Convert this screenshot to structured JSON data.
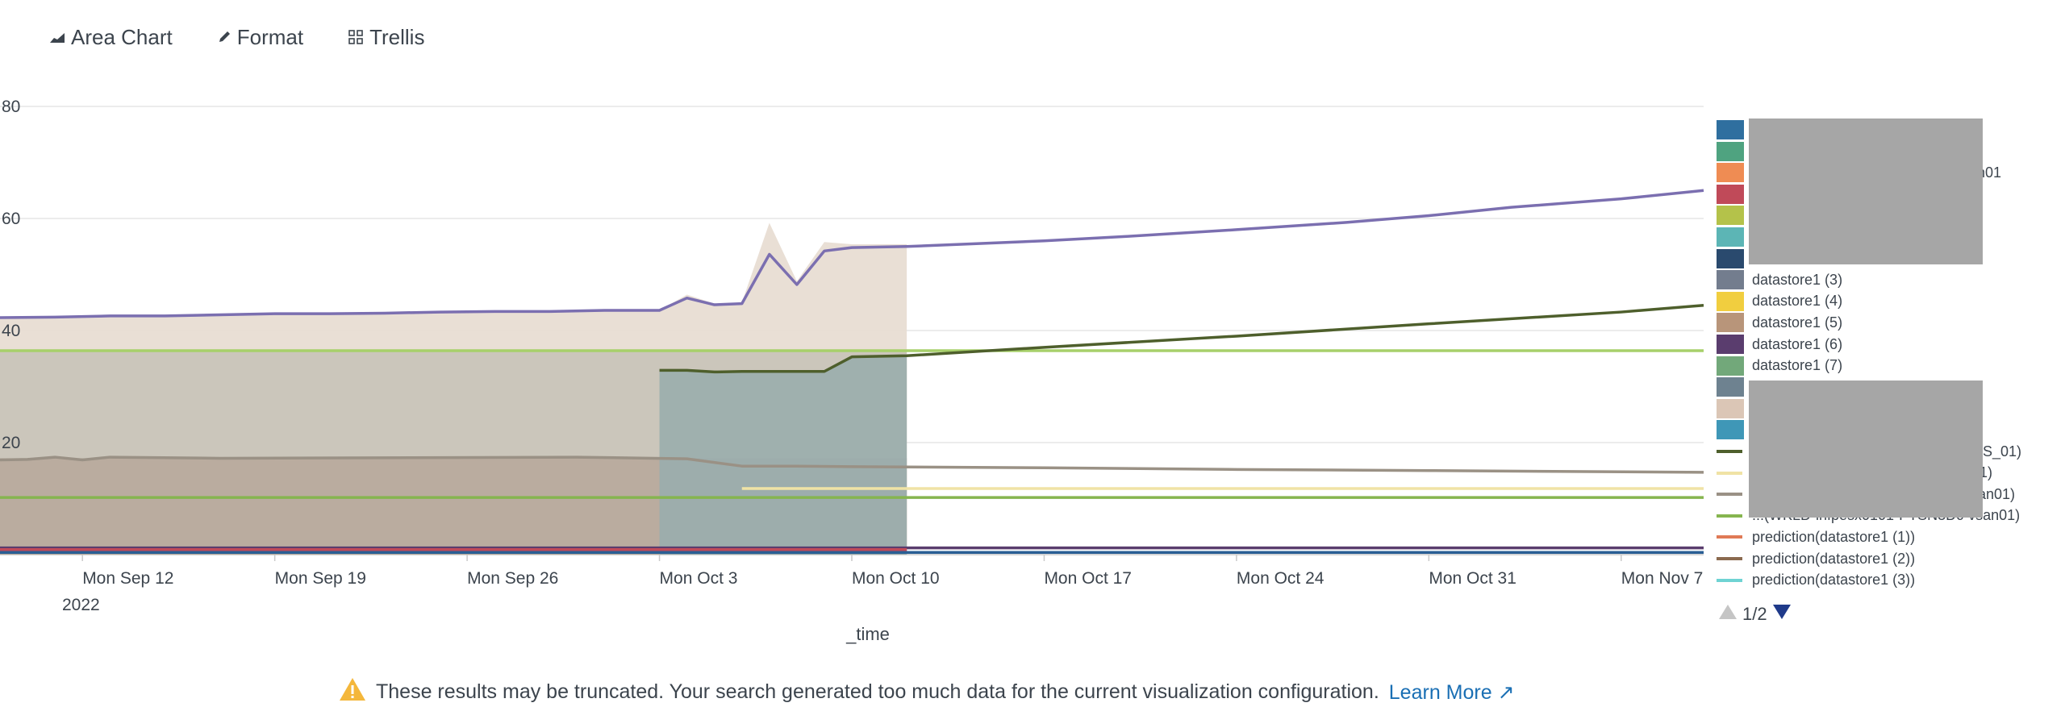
{
  "toolbar": {
    "chart_type_label": "Area Chart",
    "format_label": "Format",
    "trellis_label": "Trellis"
  },
  "chart_data": {
    "type": "area",
    "xlabel": "_time",
    "x_ticks": [
      "Mon Sep 12",
      "Mon Sep 19",
      "Mon Sep 26",
      "Mon Oct 3",
      "Mon Oct 10",
      "Mon Oct 17",
      "Mon Oct 24",
      "Mon Oct 31",
      "Mon Nov 7"
    ],
    "x_year_label": "2022",
    "y_ticks": [
      20,
      40,
      60,
      80
    ],
    "ylim": [
      0,
      80
    ],
    "xlim": [
      "2022-09-09",
      "2022-11-10"
    ],
    "grid": "horizontal",
    "legend_position": "right",
    "colors": {
      "purple_forecast": "#7b6fb0",
      "tan_area": "#e8ddd3",
      "taupe_area": "#b8a99c",
      "grey_area": "#c8c3b8",
      "teal_area": "#9aadad",
      "dark_green": "#4e5f2c",
      "light_green": "#a7d06a",
      "olive_green": "#86b54f",
      "grey_line": "#9a9185",
      "pale_yellow": "#f0e3a5"
    },
    "series": [
      {
        "color": "#7b6fb0",
        "kind": "line",
        "points": [
          [
            "2022-09-09",
            42.3
          ],
          [
            "2022-09-11",
            42.4
          ],
          [
            "2022-09-13",
            42.6
          ],
          [
            "2022-09-15",
            42.6
          ],
          [
            "2022-09-17",
            42.8
          ],
          [
            "2022-09-19",
            43
          ],
          [
            "2022-09-21",
            43
          ],
          [
            "2022-09-23",
            43.1
          ],
          [
            "2022-09-25",
            43.3
          ],
          [
            "2022-09-27",
            43.4
          ],
          [
            "2022-09-29",
            43.4
          ],
          [
            "2022-10-01",
            43.6
          ],
          [
            "2022-10-03",
            43.6
          ],
          [
            "2022-10-04",
            45.8
          ],
          [
            "2022-10-05",
            44.6
          ],
          [
            "2022-10-06",
            44.8
          ],
          [
            "2022-10-07",
            53.6
          ],
          [
            "2022-10-08",
            48.2
          ],
          [
            "2022-10-09",
            54.2
          ],
          [
            "2022-10-10",
            54.8
          ],
          [
            "2022-10-12",
            55
          ],
          [
            "2022-10-14",
            55.4
          ],
          [
            "2022-10-17",
            56
          ],
          [
            "2022-10-20",
            56.8
          ],
          [
            "2022-10-24",
            58
          ],
          [
            "2022-10-28",
            59.3
          ],
          [
            "2022-10-31",
            60.5
          ],
          [
            "2022-11-03",
            62
          ],
          [
            "2022-11-07",
            63.5
          ],
          [
            "2022-11-10",
            65
          ]
        ]
      },
      {
        "color": "#e8ddd3",
        "kind": "area",
        "points": [
          [
            "2022-09-09",
            42.3
          ],
          [
            "2022-10-03",
            43.6
          ],
          [
            "2022-10-04",
            46.4
          ],
          [
            "2022-10-05",
            44.8
          ],
          [
            "2022-10-06",
            45
          ],
          [
            "2022-10-07",
            59.2
          ],
          [
            "2022-10-08",
            48.8
          ],
          [
            "2022-10-09",
            55.8
          ],
          [
            "2022-10-10",
            55.4
          ],
          [
            "2022-10-12",
            55.4
          ]
        ]
      },
      {
        "color": "#a7d06a",
        "kind": "line",
        "points": [
          [
            "2022-09-09",
            36.4
          ],
          [
            "2022-11-10",
            36.4
          ]
        ]
      },
      {
        "color": "#4e5f2c",
        "kind": "line",
        "points": [
          [
            "2022-10-03",
            32.9
          ],
          [
            "2022-10-04",
            32.9
          ],
          [
            "2022-10-05",
            32.6
          ],
          [
            "2022-10-06",
            32.7
          ],
          [
            "2022-10-09",
            32.7
          ],
          [
            "2022-10-10",
            35.3
          ],
          [
            "2022-10-12",
            35.5
          ],
          [
            "2022-10-17",
            37
          ],
          [
            "2022-10-24",
            39
          ],
          [
            "2022-10-31",
            41.2
          ],
          [
            "2022-11-07",
            43.3
          ],
          [
            "2022-11-10",
            44.5
          ]
        ]
      },
      {
        "color": "#9a9185",
        "kind": "line",
        "points": [
          [
            "2022-09-09",
            16.9
          ],
          [
            "2022-09-10",
            17
          ],
          [
            "2022-09-11",
            17.4
          ],
          [
            "2022-09-12",
            16.9
          ],
          [
            "2022-09-13",
            17.4
          ],
          [
            "2022-09-17",
            17.2
          ],
          [
            "2022-09-24",
            17.3
          ],
          [
            "2022-09-30",
            17.4
          ],
          [
            "2022-10-04",
            17.1
          ],
          [
            "2022-10-06",
            15.8
          ],
          [
            "2022-10-08",
            15.8
          ],
          [
            "2022-10-10",
            15.7
          ],
          [
            "2022-10-17",
            15.5
          ],
          [
            "2022-10-24",
            15.2
          ],
          [
            "2022-10-31",
            15
          ],
          [
            "2022-11-10",
            14.7
          ]
        ]
      },
      {
        "color": "#f0e3a5",
        "kind": "line",
        "points": [
          [
            "2022-10-06",
            11.8
          ],
          [
            "2022-11-10",
            11.8
          ]
        ]
      },
      {
        "color": "#86b54f",
        "kind": "line",
        "points": [
          [
            "2022-09-09",
            10.2
          ],
          [
            "2022-11-10",
            10.2
          ]
        ]
      },
      {
        "color": "#5a3d6e",
        "kind": "line",
        "points": [
          [
            "2022-09-09",
            1.2
          ],
          [
            "2022-11-10",
            1.2
          ]
        ]
      },
      {
        "color": "#c04a59",
        "kind": "line",
        "points": [
          [
            "2022-09-09",
            0.9
          ],
          [
            "2022-10-12",
            0.9
          ]
        ]
      },
      {
        "color": "#2a5f94",
        "kind": "line",
        "points": [
          [
            "2022-09-09",
            0.4
          ],
          [
            "2022-11-10",
            0.4
          ]
        ]
      }
    ]
  },
  "legend": {
    "items": [
      {
        "label": "",
        "color": "#2f6f9f",
        "kind": "swatch"
      },
      {
        "label": "",
        "color": "#4fa380",
        "kind": "swatch"
      },
      {
        "label": "-vsan01",
        "color": "#ef8c53",
        "kind": "swatch"
      },
      {
        "label": "an01",
        "color": "#c04a59",
        "kind": "swatch"
      },
      {
        "label": "",
        "color": "#b4c24a",
        "kind": "swatch"
      },
      {
        "label": "",
        "color": "#5cb5b5",
        "kind": "swatch"
      },
      {
        "label": "",
        "color": "#2a4a6e",
        "kind": "swatch"
      },
      {
        "label": "datastore1 (3)",
        "color": "#737d8e",
        "kind": "swatch"
      },
      {
        "label": "datastore1 (4)",
        "color": "#f1ce3f",
        "kind": "swatch"
      },
      {
        "label": "datastore1 (5)",
        "color": "#b8957a",
        "kind": "swatch"
      },
      {
        "label": "datastore1 (6)",
        "color": "#5a3d6e",
        "kind": "swatch"
      },
      {
        "label": "datastore1 (7)",
        "color": "#72a87a",
        "kind": "swatch"
      },
      {
        "label": "",
        "color": "#6e8290",
        "kind": "swatch"
      },
      {
        "label": "",
        "color": "#dbc6b6",
        "kind": "swatch"
      },
      {
        "label": "",
        "color": "#3f97b7",
        "kind": "swatch"
      },
      {
        "label": "NFS_01)",
        "color": "#4e5f2c",
        "kind": "line"
      },
      {
        "label": "_01)",
        "color": "#f0e3a5",
        "kind": "line"
      },
      {
        "label": "vsan01)",
        "color": "#9a9185",
        "kind": "line"
      },
      {
        "label": "...(WKLD-lnfpesx0101-PTSN3Dc-vsan01)",
        "color": "#86b54f",
        "kind": "line"
      },
      {
        "label": "prediction(datastore1 (1))",
        "color": "#e07a56",
        "kind": "line"
      },
      {
        "label": "prediction(datastore1 (2))",
        "color": "#8b6a4f",
        "kind": "line"
      },
      {
        "label": "prediction(datastore1 (3))",
        "color": "#6fd3d3",
        "kind": "line"
      }
    ],
    "pager": "1/2"
  },
  "warning": {
    "text": "These results may be truncated. Your search generated too much data for the current visualization configuration.",
    "link": "Learn More"
  }
}
